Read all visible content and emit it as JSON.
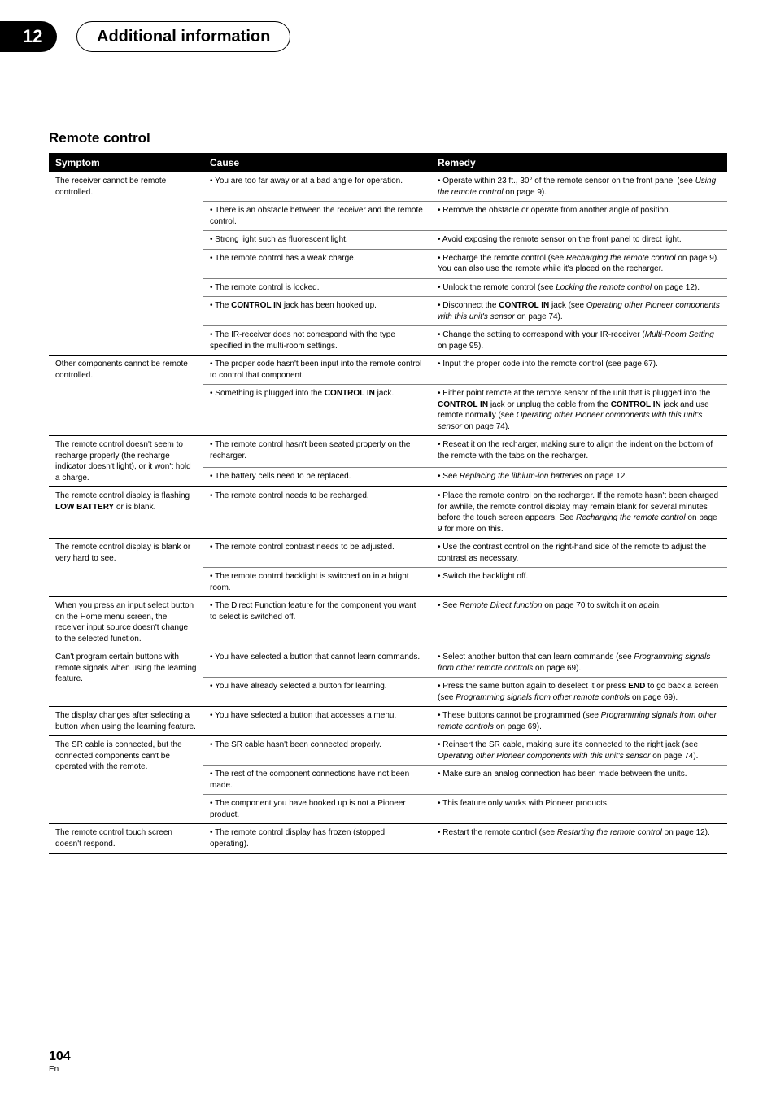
{
  "chapter_number": "12",
  "chapter_title": "Additional information",
  "section_title": "Remote control",
  "page_number": "104",
  "page_lang": "En",
  "headers": {
    "symptom": "Symptom",
    "cause": "Cause",
    "remedy": "Remedy"
  },
  "groups": [
    {
      "symptom": "The receiver cannot be remote controlled.",
      "rows": [
        {
          "cause": "• You are too far away or at a bad angle for operation.",
          "remedy": "• Operate within 23 ft., 30° of the remote sensor on the front panel (see <span class='it'>Using the remote control</span> on page 9)."
        },
        {
          "cause": "• There is an obstacle between the receiver and the remote control.",
          "remedy": "• Remove the obstacle or operate from another angle of position."
        },
        {
          "cause": "• Strong light such as fluorescent light.",
          "remedy": "• Avoid exposing the remote sensor on the front panel to direct light."
        },
        {
          "cause": "• The remote control has a weak charge.",
          "remedy": "• Recharge the remote control (see <span class='it'>Recharging the remote control</span> on page 9). You can also use the remote while it's placed on the recharger."
        },
        {
          "cause": "• The remote control is locked.",
          "remedy": "• Unlock the remote control (see <span class='it'>Locking the remote control</span> on page 12)."
        },
        {
          "cause": "• The <span class='b'>CONTROL IN</span> jack has been hooked up.",
          "remedy": "• Disconnect the <span class='b'>CONTROL IN</span> jack (see <span class='it'>Operating other Pioneer components with this unit's sensor</span> on page 74)."
        },
        {
          "cause": "• The IR-receiver does not correspond with the type specified in the multi-room settings.",
          "remedy": "• Change the setting to correspond with your IR-receiver (<span class='it'>Multi-Room Setting</span> on page 95)."
        }
      ]
    },
    {
      "symptom": "Other components cannot be remote controlled.",
      "rows": [
        {
          "cause": "• The proper code hasn't been input into the remote control to control that component.",
          "remedy": "• Input the proper code into the remote control (see page 67)."
        },
        {
          "cause": "• Something is plugged into the <span class='b'>CONTROL IN</span> jack.",
          "remedy": "• Either point remote at the remote sensor of the unit that is plugged into the <span class='b'>CONTROL IN</span> jack or unplug the cable from the <span class='b'>CONTROL IN</span> jack and use remote normally (see <span class='it'>Operating other Pioneer components with this unit's sensor</span> on page 74)."
        }
      ]
    },
    {
      "symptom": "The remote control doesn't seem to recharge properly (the recharge indicator doesn't light), or it won't hold a charge.",
      "rows": [
        {
          "cause": "• The remote control hasn't been seated properly on the recharger.",
          "remedy": "• Reseat it on the recharger, making sure to align the indent on the bottom of the remote with the tabs on the recharger."
        },
        {
          "cause": "• The battery cells need to be replaced.",
          "remedy": "• See <span class='it'>Replacing the lithium-ion batteries</span> on page 12."
        }
      ]
    },
    {
      "symptom": "The remote control display is flashing <span class='b'>LOW BATTERY</span> or is blank.",
      "rows": [
        {
          "cause": "• The remote control needs to be recharged.",
          "remedy": "• Place the remote control on the recharger. If the remote hasn't been charged for awhile, the remote control display may remain blank for several minutes before the touch screen appears. See <span class='it'>Recharging the remote control</span> on page 9 for more on this."
        }
      ]
    },
    {
      "symptom": "The remote control display is blank or very hard to see.",
      "rows": [
        {
          "cause": "• The remote control contrast needs to be adjusted.",
          "remedy": "• Use the contrast control on the right-hand side of the remote to adjust the contrast as necessary."
        },
        {
          "cause": "• The remote control backlight is switched on in a bright room.",
          "remedy": "• Switch the backlight off."
        }
      ]
    },
    {
      "symptom": "When you press an input select button on the Home menu screen, the receiver input source doesn't change to the selected function.",
      "rows": [
        {
          "cause": "• The Direct Function feature for the component you want to select is switched off.",
          "remedy": "• See <span class='it'>Remote Direct function</span> on page 70 to switch it on again."
        }
      ]
    },
    {
      "symptom": "Can't program certain buttons with remote signals when using the learning feature.",
      "rows": [
        {
          "cause": "• You have selected a button that cannot learn commands.",
          "remedy": "• Select another button that can learn commands (see <span class='it'>Programming signals from other remote controls</span> on page 69)."
        },
        {
          "cause": "• You have already selected a button for learning.",
          "remedy": "• Press the same button again to deselect it or press <span class='b'>END</span> to go back a screen (see <span class='it'>Programming signals from other remote controls</span> on page 69)."
        }
      ]
    },
    {
      "symptom": "The display changes after selecting a button when using the learning feature.",
      "rows": [
        {
          "cause": "• You have selected a button that accesses a menu.",
          "remedy": "• These buttons cannot be programmed (see <span class='it'>Programming signals from other remote controls</span> on page 69)."
        }
      ]
    },
    {
      "symptom": "The SR cable is connected, but the connected components can't be operated with the remote.",
      "rows": [
        {
          "cause": "• The SR cable hasn't been connected properly.",
          "remedy": "• Reinsert the SR cable, making sure it's connected to the right jack (see <span class='it'>Operating other Pioneer components with this unit's sensor</span> on page 74)."
        },
        {
          "cause": "• The rest of the component connections have not been made.",
          "remedy": "• Make sure an analog connection has been made between the units."
        },
        {
          "cause": "• The component you have hooked up is not a Pioneer product.",
          "remedy": "• This feature only works with Pioneer products."
        }
      ]
    },
    {
      "symptom": "The remote control touch screen doesn't respond.",
      "rows": [
        {
          "cause": "• The remote control display has frozen (stopped operating).",
          "remedy": "• Restart the remote control (see <span class='it'>Restarting the remote control</span> on page 12)."
        }
      ]
    }
  ]
}
